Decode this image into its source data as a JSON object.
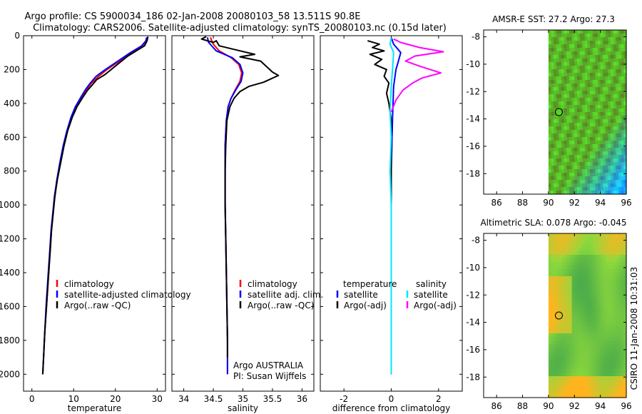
{
  "header": {
    "title_line1": "Argo profile: CS 5900034_186 02-Jan-2008 20080103_58 13.511S 90.8E",
    "title_line2": "Climatology: CARS2006. Satellite-adjusted climatology: synTS_20080103.nc (0.15d later)"
  },
  "side_label": "CSIRO 11-Jan-2008 10:31:03",
  "colors": {
    "climatology": "#ff0000",
    "satellite": "#0000ff",
    "argo": "#000000",
    "salinity_satellite": "#00e5ff",
    "salinity_argo": "#ff00ff"
  },
  "chart_data": [
    {
      "type": "line",
      "id": "temperature",
      "xlabel": "temperature",
      "ylabel": "",
      "xlim": [
        -2,
        32
      ],
      "ylim": [
        0,
        2100
      ],
      "y_reversed": true,
      "x_ticks": [
        0,
        10,
        20,
        30
      ],
      "y_ticks": [
        0,
        200,
        400,
        600,
        800,
        1000,
        1200,
        1400,
        1600,
        1800,
        2000
      ],
      "legend": {
        "position": "lower-right",
        "entries": [
          {
            "label": "climatology",
            "color_key": "climatology"
          },
          {
            "label": "satellite-adjusted climatology",
            "color_key": "satellite"
          },
          {
            "label": "Argo(..raw -QC)",
            "color_key": "argo"
          }
        ]
      },
      "series": [
        {
          "name": "climatology",
          "color_key": "climatology",
          "points": [
            [
              27.6,
              10
            ],
            [
              27.4,
              30
            ],
            [
              26.5,
              60
            ],
            [
              24,
              100
            ],
            [
              21,
              150
            ],
            [
              18,
              200
            ],
            [
              16,
              240
            ],
            [
              14.3,
              280
            ],
            [
              13,
              320
            ],
            [
              12,
              360
            ],
            [
              10.5,
              420
            ],
            [
              9.5,
              480
            ],
            [
              8.5,
              560
            ],
            [
              7.6,
              650
            ],
            [
              6.8,
              750
            ],
            [
              6,
              850
            ],
            [
              5.5,
              950
            ],
            [
              5,
              1050
            ],
            [
              4.7,
              1150
            ],
            [
              4.3,
              1300
            ],
            [
              3.9,
              1450
            ],
            [
              3.5,
              1600
            ],
            [
              3.1,
              1750
            ],
            [
              2.8,
              1900
            ],
            [
              2.6,
              2000
            ]
          ]
        },
        {
          "name": "satellite-adjusted climatology",
          "color_key": "satellite",
          "points": [
            [
              27.5,
              10
            ],
            [
              27.3,
              30
            ],
            [
              26.3,
              60
            ],
            [
              23.6,
              100
            ],
            [
              20.6,
              150
            ],
            [
              17.6,
              200
            ],
            [
              15.4,
              240
            ],
            [
              14,
              280
            ],
            [
              12.8,
              320
            ],
            [
              11.8,
              360
            ],
            [
              10.4,
              420
            ],
            [
              9.4,
              480
            ],
            [
              8.4,
              560
            ],
            [
              7.5,
              650
            ],
            [
              6.7,
              750
            ],
            [
              6,
              850
            ],
            [
              5.4,
              950
            ],
            [
              5,
              1050
            ],
            [
              4.6,
              1150
            ],
            [
              4.2,
              1300
            ],
            [
              3.8,
              1450
            ],
            [
              3.4,
              1600
            ],
            [
              3.1,
              1750
            ],
            [
              2.8,
              1900
            ],
            [
              2.6,
              2000
            ]
          ]
        },
        {
          "name": "Argo(..raw -QC)",
          "color_key": "argo",
          "points": [
            [
              27.8,
              5
            ],
            [
              27.6,
              30
            ],
            [
              27,
              60
            ],
            [
              25,
              90
            ],
            [
              23,
              120
            ],
            [
              21,
              160
            ],
            [
              19,
              200
            ],
            [
              17.5,
              230
            ],
            [
              15.5,
              260
            ],
            [
              14.5,
              290
            ],
            [
              13.4,
              320
            ],
            [
              12.3,
              360
            ],
            [
              10.8,
              420
            ],
            [
              9.7,
              480
            ],
            [
              8.6,
              560
            ],
            [
              7.7,
              650
            ],
            [
              6.9,
              750
            ],
            [
              6.1,
              850
            ],
            [
              5.5,
              950
            ],
            [
              5.1,
              1050
            ],
            [
              4.7,
              1150
            ],
            [
              4.3,
              1300
            ],
            [
              3.9,
              1450
            ],
            [
              3.5,
              1600
            ],
            [
              3.1,
              1750
            ],
            [
              2.8,
              1900
            ],
            [
              2.6,
              2000
            ]
          ]
        }
      ]
    },
    {
      "type": "line",
      "id": "salinity",
      "xlabel": "salinity",
      "ylabel": "",
      "xlim": [
        33.8,
        36.2
      ],
      "ylim": [
        0,
        2100
      ],
      "y_reversed": true,
      "x_ticks": [
        34,
        34.5,
        35,
        35.5,
        36
      ],
      "legend": {
        "position": "lower-right",
        "entries": [
          {
            "label": "climatology",
            "color_key": "climatology"
          },
          {
            "label": "satellite adj. clim.",
            "color_key": "satellite"
          },
          {
            "label": "Argo(..raw -QC)",
            "color_key": "argo"
          }
        ]
      },
      "annotations": [
        "Argo AUSTRALIA",
        "PI: Susan Wijffels"
      ],
      "series": [
        {
          "name": "climatology",
          "color_key": "climatology",
          "points": [
            [
              34.45,
              10
            ],
            [
              34.5,
              50
            ],
            [
              34.6,
              90
            ],
            [
              34.8,
              130
            ],
            [
              34.93,
              170
            ],
            [
              34.98,
              220
            ],
            [
              34.95,
              270
            ],
            [
              34.87,
              320
            ],
            [
              34.8,
              370
            ],
            [
              34.75,
              420
            ],
            [
              34.72,
              500
            ],
            [
              34.7,
              650
            ],
            [
              34.7,
              800
            ],
            [
              34.7,
              1000
            ],
            [
              34.71,
              1200
            ],
            [
              34.72,
              1400
            ],
            [
              34.73,
              1600
            ],
            [
              34.74,
              1800
            ],
            [
              34.74,
              2000
            ]
          ]
        },
        {
          "name": "satellite adj. clim.",
          "color_key": "satellite",
          "points": [
            [
              34.4,
              10
            ],
            [
              34.42,
              40
            ],
            [
              34.55,
              90
            ],
            [
              34.82,
              130
            ],
            [
              34.95,
              170
            ],
            [
              35,
              220
            ],
            [
              34.97,
              270
            ],
            [
              34.88,
              320
            ],
            [
              34.8,
              370
            ],
            [
              34.75,
              420
            ],
            [
              34.72,
              500
            ],
            [
              34.7,
              650
            ],
            [
              34.7,
              800
            ],
            [
              34.7,
              1000
            ],
            [
              34.71,
              1200
            ],
            [
              34.72,
              1400
            ],
            [
              34.73,
              1600
            ],
            [
              34.74,
              1800
            ],
            [
              34.74,
              2000
            ]
          ]
        },
        {
          "name": "Argo(..raw -QC)",
          "color_key": "argo",
          "points": [
            [
              34.38,
              5
            ],
            [
              34.3,
              20
            ],
            [
              34.5,
              40
            ],
            [
              34.55,
              30
            ],
            [
              34.6,
              60
            ],
            [
              34.9,
              85
            ],
            [
              35.2,
              110
            ],
            [
              34.95,
              125
            ],
            [
              35.3,
              150
            ],
            [
              35.5,
              215
            ],
            [
              35.6,
              235
            ],
            [
              35.35,
              275
            ],
            [
              35.1,
              300
            ],
            [
              34.95,
              330
            ],
            [
              34.85,
              370
            ],
            [
              34.78,
              420
            ],
            [
              34.73,
              500
            ],
            [
              34.71,
              650
            ],
            [
              34.7,
              800
            ],
            [
              34.7,
              1000
            ],
            [
              34.71,
              1200
            ],
            [
              34.72,
              1400
            ],
            [
              34.73,
              1600
            ],
            [
              34.74,
              1800
            ],
            [
              34.74,
              1900
            ]
          ]
        }
      ]
    },
    {
      "type": "line",
      "id": "difference",
      "xlabel": "difference from climatology",
      "ylabel": "",
      "xlim": [
        -3,
        3
      ],
      "ylim": [
        0,
        2100
      ],
      "y_reversed": true,
      "x_ticks": [
        -2,
        0,
        2
      ],
      "legend": {
        "position": "lower-right",
        "groups": [
          {
            "heading": "temperature",
            "entries": [
              {
                "label": "satellite",
                "color_key": "satellite"
              },
              {
                "label": "Argo(-adj)",
                "color_key": "argo"
              }
            ]
          },
          {
            "heading": "salinity",
            "entries": [
              {
                "label": "satellite",
                "color_key": "salinity_satellite"
              },
              {
                "label": "Argo(-adj)",
                "color_key": "salinity_argo"
              }
            ]
          }
        ]
      },
      "series": [
        {
          "name": "temperature satellite",
          "color_key": "satellite",
          "points": [
            [
              0,
              10
            ],
            [
              0.1,
              50
            ],
            [
              0.4,
              100
            ],
            [
              0.3,
              150
            ],
            [
              0.2,
              200
            ],
            [
              0.1,
              300
            ],
            [
              0.05,
              500
            ],
            [
              0,
              800
            ],
            [
              0,
              2000
            ]
          ]
        },
        {
          "name": "temperature Argo(-adj)",
          "color_key": "argo",
          "points": [
            [
              -1,
              30
            ],
            [
              -0.5,
              50
            ],
            [
              -0.8,
              70
            ],
            [
              -0.3,
              90
            ],
            [
              -0.9,
              110
            ],
            [
              -0.4,
              140
            ],
            [
              -0.7,
              170
            ],
            [
              -0.2,
              200
            ],
            [
              -0.3,
              240
            ],
            [
              -0.1,
              280
            ],
            [
              -0.2,
              340
            ],
            [
              -0.1,
              400
            ],
            [
              0,
              500
            ],
            [
              0,
              2000
            ]
          ]
        },
        {
          "name": "salinity satellite",
          "color_key": "salinity_satellite",
          "points": [
            [
              0,
              10
            ],
            [
              -0.05,
              50
            ],
            [
              0.1,
              100
            ],
            [
              0.05,
              200
            ],
            [
              0,
              300
            ],
            [
              -0.05,
              450
            ],
            [
              0,
              600
            ],
            [
              -0.05,
              800
            ],
            [
              0,
              1000
            ],
            [
              0,
              2000
            ]
          ]
        },
        {
          "name": "salinity Argo(-adj)",
          "color_key": "salinity_argo",
          "points": [
            [
              0.1,
              20
            ],
            [
              0.4,
              40
            ],
            [
              1.2,
              70
            ],
            [
              2.2,
              95
            ],
            [
              1,
              120
            ],
            [
              0.6,
              150
            ],
            [
              1.2,
              180
            ],
            [
              2.1,
              220
            ],
            [
              1.3,
              250
            ],
            [
              0.9,
              280
            ],
            [
              0.5,
              320
            ],
            [
              0.2,
              380
            ],
            [
              0,
              450
            ]
          ]
        }
      ]
    },
    {
      "type": "heatmap",
      "id": "sst-map",
      "title": "AMSR-E SST: 27.2 Argo: 27.3",
      "xlim": [
        85,
        96
      ],
      "ylim": [
        -19.5,
        -7.5
      ],
      "x_ticks": [
        86,
        88,
        90,
        92,
        94,
        96
      ],
      "y_ticks": [
        -8,
        -10,
        -12,
        -14,
        -16,
        -18
      ],
      "data_xlim": [
        90,
        96
      ],
      "marker": {
        "lon": 90.8,
        "lat": -13.5
      },
      "scene": "mostly green; cyan-blue toward south-east corner"
    },
    {
      "type": "heatmap",
      "id": "sla-map",
      "title": "Altimetric SLA: 0.078 Argo: -0.045",
      "xlim": [
        85,
        96
      ],
      "ylim": [
        -19.5,
        -7.5
      ],
      "x_ticks": [
        86,
        88,
        90,
        92,
        94,
        96
      ],
      "y_ticks": [
        -8,
        -10,
        -12,
        -14,
        -16,
        -18
      ],
      "data_xlim": [
        90,
        96
      ],
      "marker": {
        "lon": 90.8,
        "lat": -13.5
      },
      "scene": "green field with yellow-orange patches west and south, darker green eddy near 93E 14S"
    }
  ]
}
